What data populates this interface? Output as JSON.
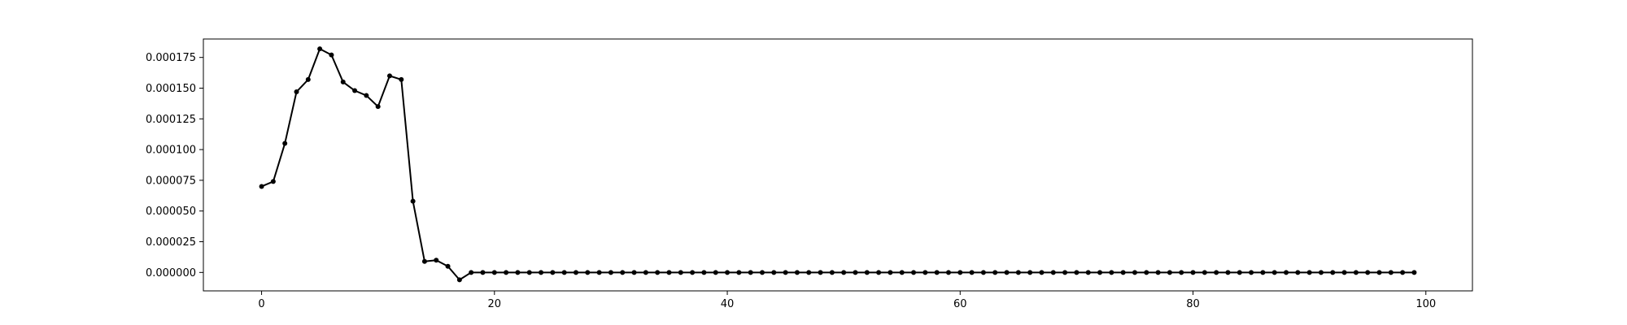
{
  "chart_data": {
    "type": "line",
    "title": "",
    "xlabel": "",
    "ylabel": "",
    "xlim": [
      -5,
      104
    ],
    "ylim": [
      -1.5e-05,
      0.00019
    ],
    "grid": false,
    "x_ticks": [
      0,
      20,
      40,
      60,
      80,
      100
    ],
    "x_tick_labels": [
      "0",
      "20",
      "40",
      "60",
      "80",
      "100"
    ],
    "y_ticks": [
      0,
      2.5e-05,
      5e-05,
      7.5e-05,
      0.0001,
      0.000125,
      0.00015,
      0.000175
    ],
    "y_tick_labels": [
      "0.000000",
      "0.000025",
      "0.000050",
      "0.000075",
      "0.000100",
      "0.000125",
      "0.000150",
      "0.000175"
    ],
    "series": [
      {
        "color": "#000000",
        "marker": "dot",
        "x": [
          0,
          1,
          2,
          3,
          4,
          5,
          6,
          7,
          8,
          9,
          10,
          11,
          12,
          13,
          14,
          15,
          16,
          17,
          18,
          19,
          20,
          21,
          22,
          23,
          24,
          25,
          26,
          27,
          28,
          29,
          30,
          31,
          32,
          33,
          34,
          35,
          36,
          37,
          38,
          39,
          40,
          41,
          42,
          43,
          44,
          45,
          46,
          47,
          48,
          49,
          50,
          51,
          52,
          53,
          54,
          55,
          56,
          57,
          58,
          59,
          60,
          61,
          62,
          63,
          64,
          65,
          66,
          67,
          68,
          69,
          70,
          71,
          72,
          73,
          74,
          75,
          76,
          77,
          78,
          79,
          80,
          81,
          82,
          83,
          84,
          85,
          86,
          87,
          88,
          89,
          90,
          91,
          92,
          93,
          94,
          95,
          96,
          97,
          98,
          99
        ],
        "values": [
          7e-05,
          7.4e-05,
          0.000105,
          0.000147,
          0.000157,
          0.000182,
          0.000177,
          0.000155,
          0.000148,
          0.000144,
          0.000135,
          0.00016,
          0.000157,
          5.8e-05,
          9e-06,
          1e-05,
          5e-06,
          -6e-06,
          0,
          0,
          0,
          0,
          0,
          0,
          0,
          0,
          0,
          0,
          0,
          0,
          0,
          0,
          0,
          0,
          0,
          0,
          0,
          0,
          0,
          0,
          0,
          0,
          0,
          0,
          0,
          0,
          0,
          0,
          0,
          0,
          0,
          0,
          0,
          0,
          0,
          0,
          0,
          0,
          0,
          0,
          0,
          0,
          0,
          0,
          0,
          0,
          0,
          0,
          0,
          0,
          0,
          0,
          0,
          0,
          0,
          0,
          0,
          0,
          0,
          0,
          0,
          0,
          0,
          0,
          0,
          0,
          0,
          0,
          0,
          0,
          0,
          0,
          0,
          0,
          0,
          0,
          0,
          0,
          0,
          0
        ]
      }
    ]
  }
}
